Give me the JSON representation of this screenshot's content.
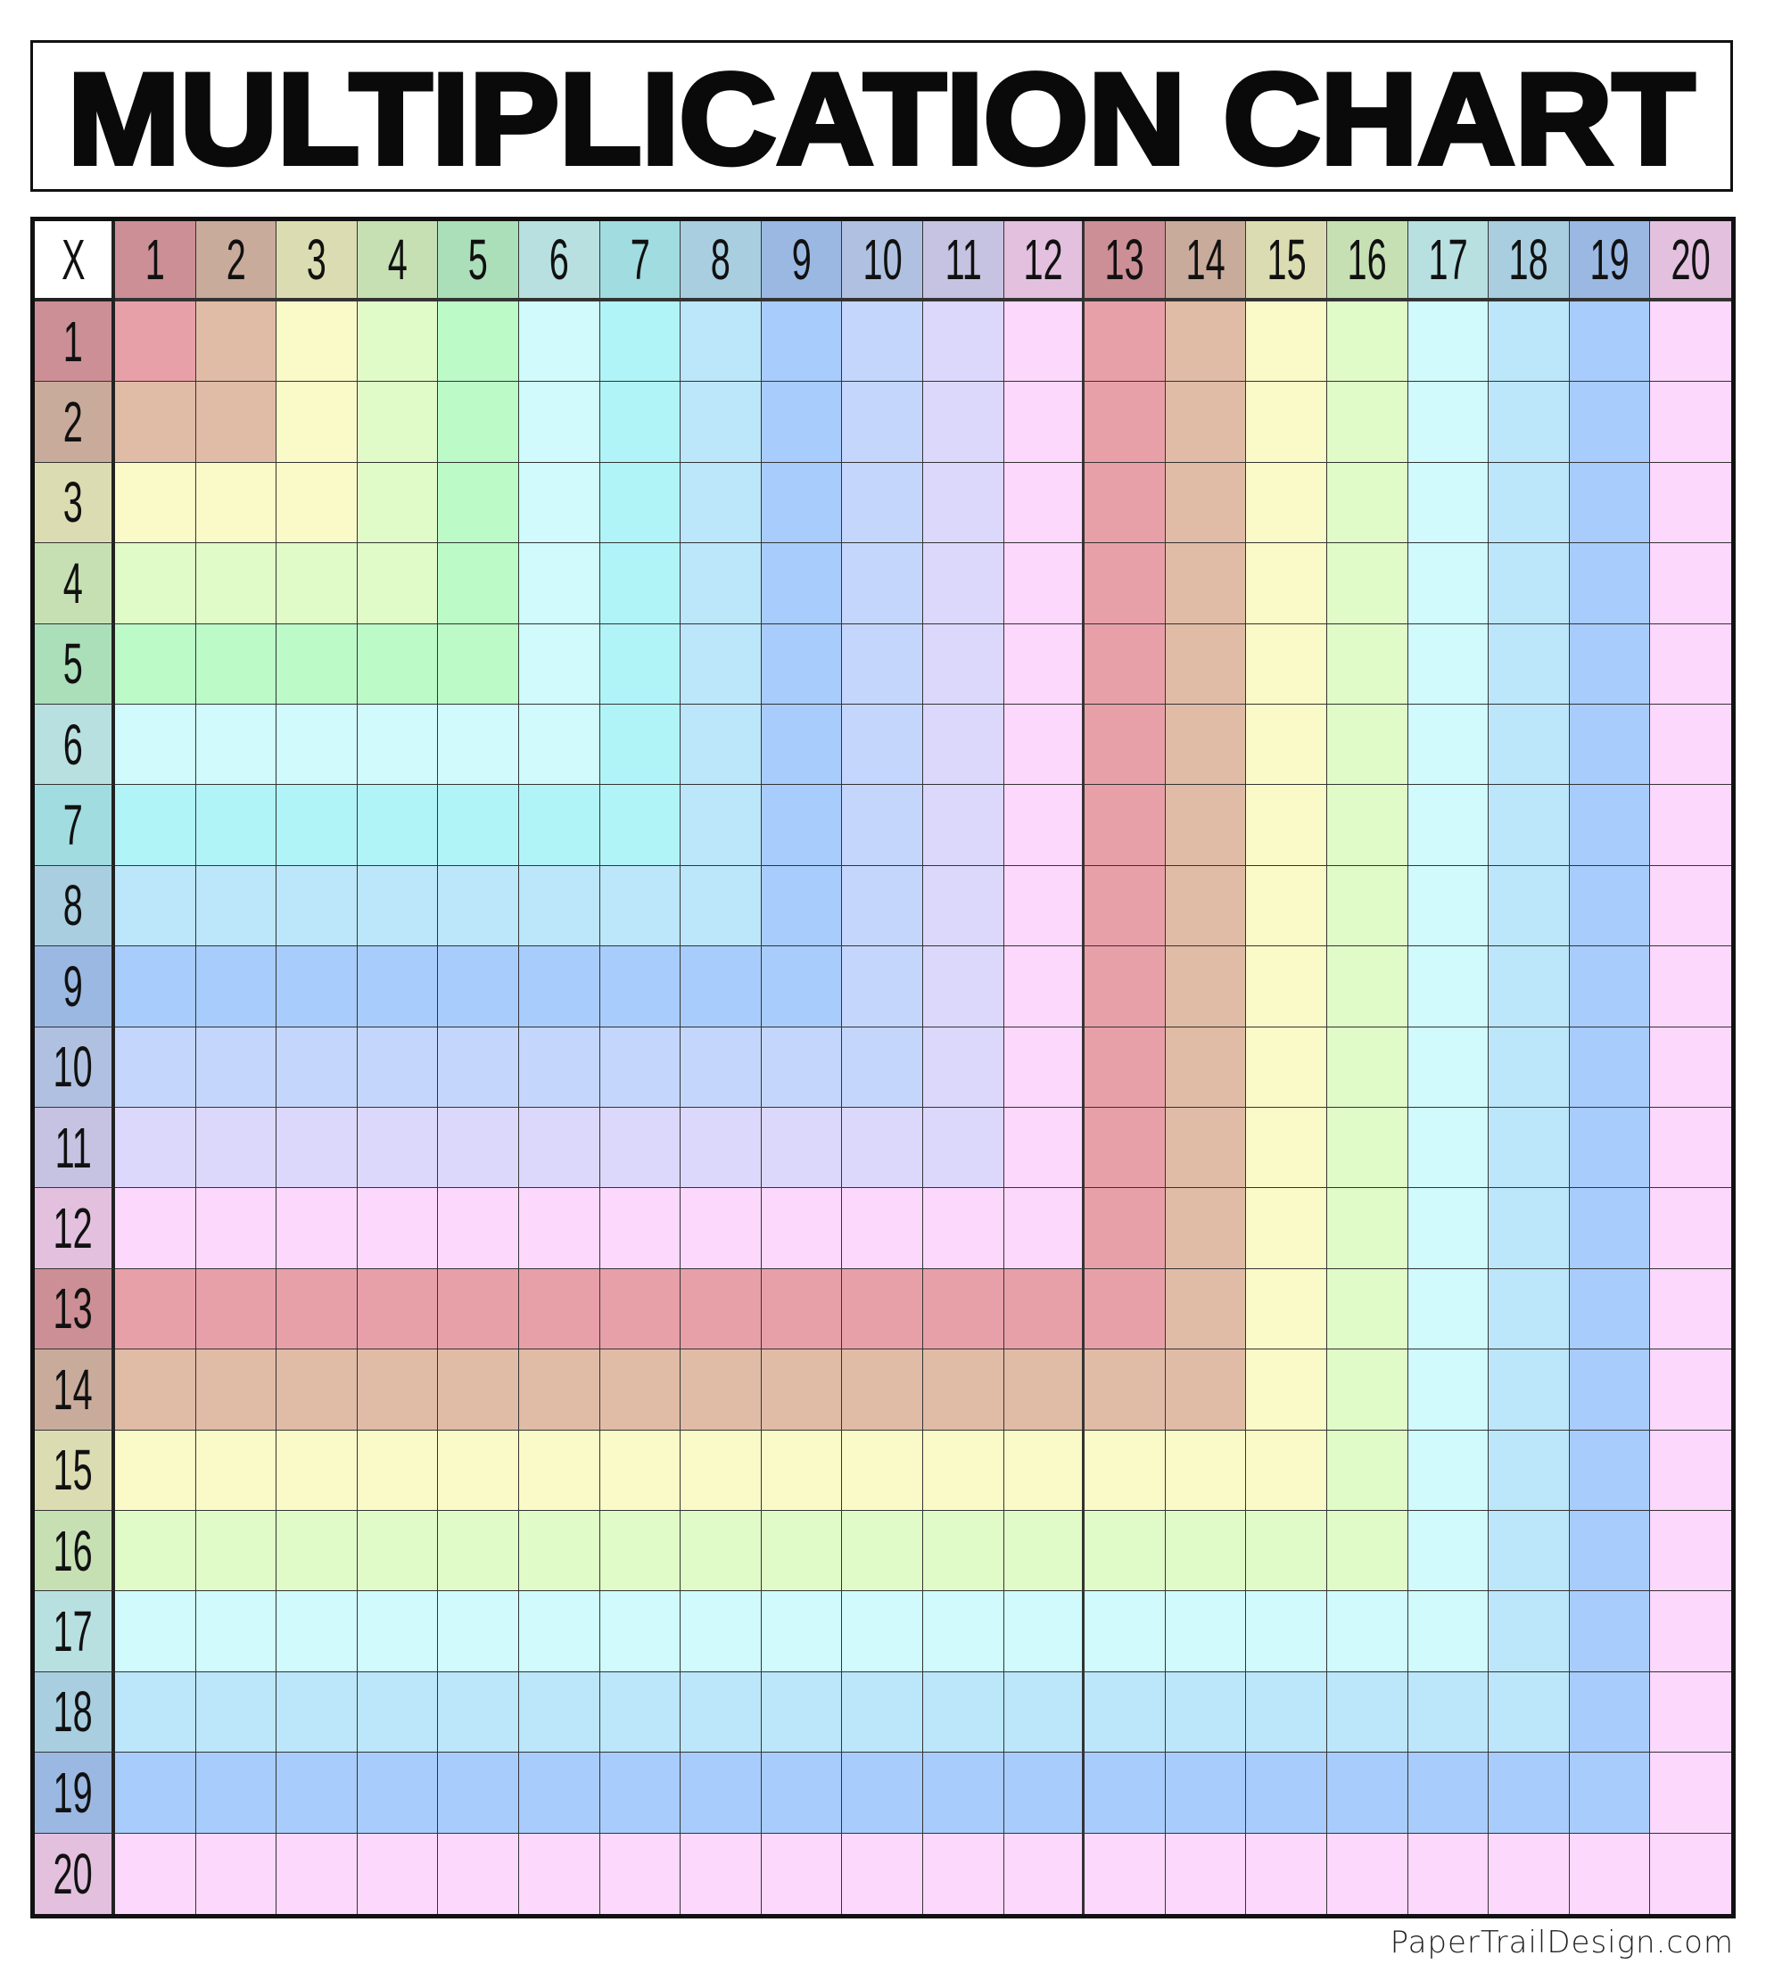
{
  "title": "MULTIPLICATION CHART",
  "corner_label": "X",
  "column_headers": [
    "1",
    "2",
    "3",
    "4",
    "5",
    "6",
    "7",
    "8",
    "9",
    "10",
    "11",
    "12",
    "13",
    "14",
    "15",
    "16",
    "17",
    "18",
    "19",
    "20"
  ],
  "row_headers": [
    "1",
    "2",
    "3",
    "4",
    "5",
    "6",
    "7",
    "8",
    "9",
    "10",
    "11",
    "12",
    "13",
    "14",
    "15",
    "16",
    "17",
    "18",
    "19",
    "20"
  ],
  "colors": {
    "header": [
      "#cc8f95",
      "#c9ab9b",
      "#dcdcb2",
      "#c6e0b4",
      "#abdfb9",
      "#b8e0e0",
      "#a0dce0",
      "#a8cee0",
      "#9ab8e2",
      "#b0c0e0",
      "#c6c2e2",
      "#e2c0de",
      "#cc8f95",
      "#c9ab9b",
      "#dcdcb2",
      "#c6e0b4",
      "#b8e0e0",
      "#a8cee0",
      "#9ab8e2",
      "#e2c0de"
    ],
    "cell": [
      "#e8a0a8",
      "#e0bca6",
      "#fafac8",
      "#e0fac8",
      "#bcfac8",
      "#d0fafc",
      "#b0f4f8",
      "#bce6fa",
      "#a8ccfc",
      "#c4d6fc",
      "#dcd8fc",
      "#fcd8fc",
      "#e8a0a8",
      "#e0bca6",
      "#fafac8",
      "#e0fac8",
      "#d0fafc",
      "#bce6fa",
      "#a8ccfc",
      "#fcd8fc"
    ]
  },
  "footer": "PaperTrailDesign.com"
}
